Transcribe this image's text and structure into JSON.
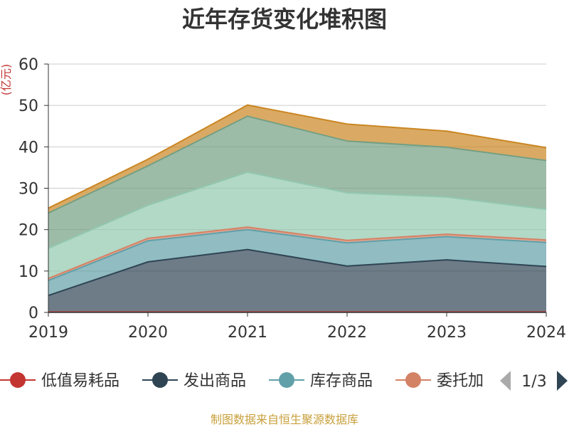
{
  "chart_data": {
    "type": "area",
    "stacked": true,
    "title": "近年存货变化堆积图",
    "unit_label": "(亿元)",
    "x": [
      "2019",
      "2020",
      "2021",
      "2022",
      "2023",
      "2024"
    ],
    "ylim": [
      0,
      60
    ],
    "yticks": [
      0,
      10,
      20,
      30,
      40,
      50,
      60
    ],
    "grid": true,
    "series": [
      {
        "name": "低值易耗品",
        "color": "#c23531",
        "values": [
          0.1,
          0.1,
          0.1,
          0.1,
          0.1,
          0.1
        ]
      },
      {
        "name": "发出商品",
        "color": "#2f4554",
        "values": [
          4.0,
          12.1,
          15.1,
          11.1,
          12.6,
          11.0
        ]
      },
      {
        "name": "库存商品",
        "color": "#61a0a8",
        "values": [
          3.6,
          5.1,
          4.8,
          5.6,
          5.6,
          5.8
        ]
      },
      {
        "name": "委托加工物资",
        "color": "#d48265",
        "values": [
          0.5,
          0.6,
          0.6,
          0.6,
          0.6,
          0.6
        ]
      },
      {
        "name": "",
        "color": "#91c7ae",
        "values": [
          7.3,
          8.0,
          13.3,
          11.5,
          9.0,
          7.4
        ]
      },
      {
        "name": "",
        "color": "#749f83",
        "values": [
          8.5,
          9.5,
          13.5,
          12.5,
          12.0,
          11.8
        ]
      },
      {
        "name": "",
        "color": "#ca8622",
        "values": [
          1.2,
          1.6,
          2.7,
          4.1,
          3.9,
          3.1
        ]
      }
    ],
    "legend": {
      "position": "bottom",
      "visible_items": [
        "低值易耗品",
        "发出商品",
        "库存商品",
        "委托加"
      ],
      "page": "1/3"
    }
  },
  "source_text": "制图数据来自恒生聚源数据库"
}
